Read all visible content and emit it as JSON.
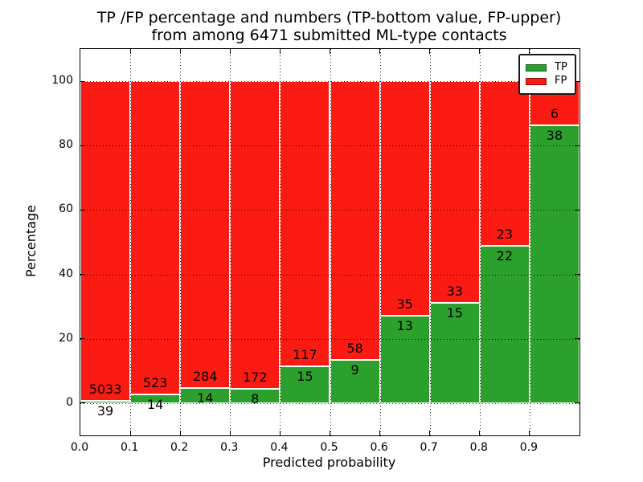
{
  "title": {
    "line1": "TP /FP percentage and numbers (TP-bottom value, FP-upper)",
    "line2": "from among 6471 submitted ML-type contacts"
  },
  "legend": {
    "position": "upper right",
    "items": [
      {
        "label": "TP",
        "color": "#2CA02C"
      },
      {
        "label": "FP",
        "color": "#FB1B12"
      }
    ]
  },
  "chart_data": {
    "type": "bar",
    "stacked": true,
    "title": "TP /FP percentage and numbers (TP-bottom value, FP-upper) from among 6471 submitted ML-type contacts",
    "xlabel": "Predicted probability",
    "ylabel": "Percentage",
    "total_contacts": 6471,
    "x_bin_edges": [
      0.0,
      0.1,
      0.2,
      0.3,
      0.4,
      0.5,
      0.6,
      0.7,
      0.8,
      0.9,
      1.0
    ],
    "series": [
      {
        "name": "TP",
        "color": "#2CA02C",
        "counts": [
          39,
          14,
          14,
          8,
          15,
          9,
          13,
          15,
          22,
          38
        ]
      },
      {
        "name": "FP",
        "color": "#FB1B12",
        "counts": [
          5033,
          523,
          284,
          172,
          117,
          58,
          35,
          33,
          23,
          6
        ]
      }
    ],
    "bar_height_rule": "TP bottom segment = TP/(TP+FP)*100, FP upper segment fills to 100%",
    "tp_percent": [
      0.77,
      2.61,
      4.7,
      4.44,
      11.36,
      13.43,
      27.08,
      31.25,
      48.89,
      86.36
    ],
    "xlim": [
      0.0,
      1.0
    ],
    "ylim": [
      -10,
      110
    ],
    "yticks": [
      0,
      20,
      40,
      60,
      80,
      100
    ],
    "xtick_labels": [
      "0.0",
      "0.1",
      "0.2",
      "0.3",
      "0.4",
      "0.5",
      "0.6",
      "0.7",
      "0.8",
      "0.9"
    ],
    "grid": {
      "style": "dotted",
      "color": "#000000"
    },
    "bar_edge_color": "#ffffff",
    "legend_position": "upper right"
  }
}
